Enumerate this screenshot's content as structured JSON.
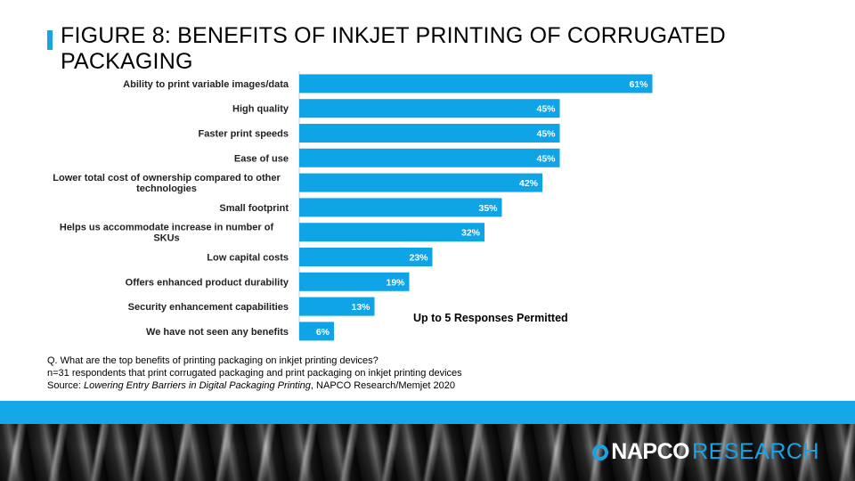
{
  "title": "FIGURE 8: BENEFITS OF INKJET PRINTING OF CORRUGATED PACKAGING",
  "colors": {
    "bar": "#0fa4e6",
    "accent": "#1aa3e0",
    "band": "#14a8e8"
  },
  "chart_data": {
    "type": "bar",
    "orientation": "horizontal",
    "title": "FIGURE 8: BENEFITS OF INKJET PRINTING OF CORRUGATED PACKAGING",
    "categories": [
      "Ability to print variable images/data",
      "High quality",
      "Faster print speeds",
      "Ease of use",
      "Lower total cost of ownership compared to other technologies",
      "Small footprint",
      "Helps us accommodate increase in number of SKUs",
      "Low capital costs",
      "Offers enhanced product durability",
      "Security enhancement capabilities",
      "We have not seen any benefits"
    ],
    "category_lines": [
      [
        "Ability to print variable images/data"
      ],
      [
        "High quality"
      ],
      [
        "Faster print speeds"
      ],
      [
        "Ease of use"
      ],
      [
        "Lower total cost of ownership compared to other",
        "technologies"
      ],
      [
        "Small footprint"
      ],
      [
        "Helps us accommodate increase in number of",
        "SKUs"
      ],
      [
        "Low capital costs"
      ],
      [
        "Offers enhanced product durability"
      ],
      [
        "Security enhancement capabilities"
      ],
      [
        "We have not seen any benefits"
      ]
    ],
    "values": [
      61,
      45,
      45,
      45,
      42,
      35,
      32,
      23,
      19,
      13,
      6
    ],
    "value_labels": [
      "61%",
      "45%",
      "45%",
      "45%",
      "42%",
      "35%",
      "32%",
      "23%",
      "19%",
      "13%",
      "6%"
    ],
    "xlim": [
      0,
      100
    ],
    "grid": false,
    "legend": "none",
    "annotation": "Up to 5 Responses Permitted"
  },
  "notes": {
    "question": "Q. What are the top benefits of printing packaging on inkjet printing devices?",
    "sample": "n=31 respondents that print corrugated packaging and print packaging on inkjet printing devices",
    "source_prefix": "Source: ",
    "source_title": "Lowering Entry Barriers in Digital Packaging Printing",
    "source_suffix": ", NAPCO Research/Memjet 2020"
  },
  "logo": {
    "part_a": "NAPCO",
    "part_b": "RESEARCH"
  }
}
